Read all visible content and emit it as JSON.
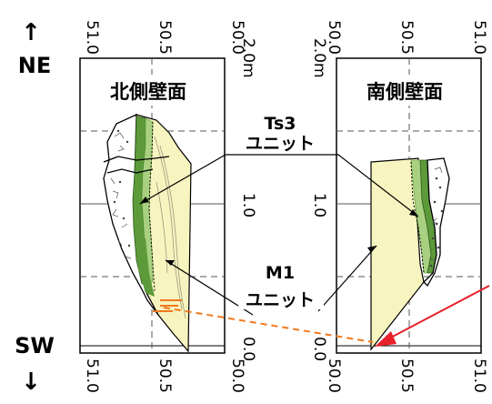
{
  "orientation": {
    "top_arrow": "↑",
    "top_label": "NE",
    "bottom_label": "SW",
    "bottom_arrow": "↓"
  },
  "north_wall": {
    "title": "北側壁面",
    "top_ticks": [
      "51.0",
      "50.5",
      "50.0"
    ],
    "bottom_ticks": [
      "51.0",
      "50.5",
      "50.0"
    ]
  },
  "south_wall": {
    "title": "南側壁面",
    "top_ticks": [
      "50.0",
      "50.5",
      "51.0"
    ],
    "bottom_ticks": [
      "50.0",
      "50.5",
      "51.0"
    ]
  },
  "depth_scale": {
    "left_labels": [
      "2.0m",
      "1.0",
      "0.0"
    ],
    "right_labels": [
      "2.0m",
      "1.0",
      "0.0"
    ]
  },
  "units": {
    "upper": {
      "line1": "Ts3",
      "line2": "ユニット"
    },
    "lower": {
      "line1": "M1",
      "line2": "ユニット"
    }
  },
  "colors": {
    "sand": "#f8f4c0",
    "green_dark": "#5c9a3a",
    "green_light": "#a8d080",
    "orange": "#f07a20",
    "red": "#e8202a",
    "outline": "#000000",
    "grid": "#555555"
  }
}
